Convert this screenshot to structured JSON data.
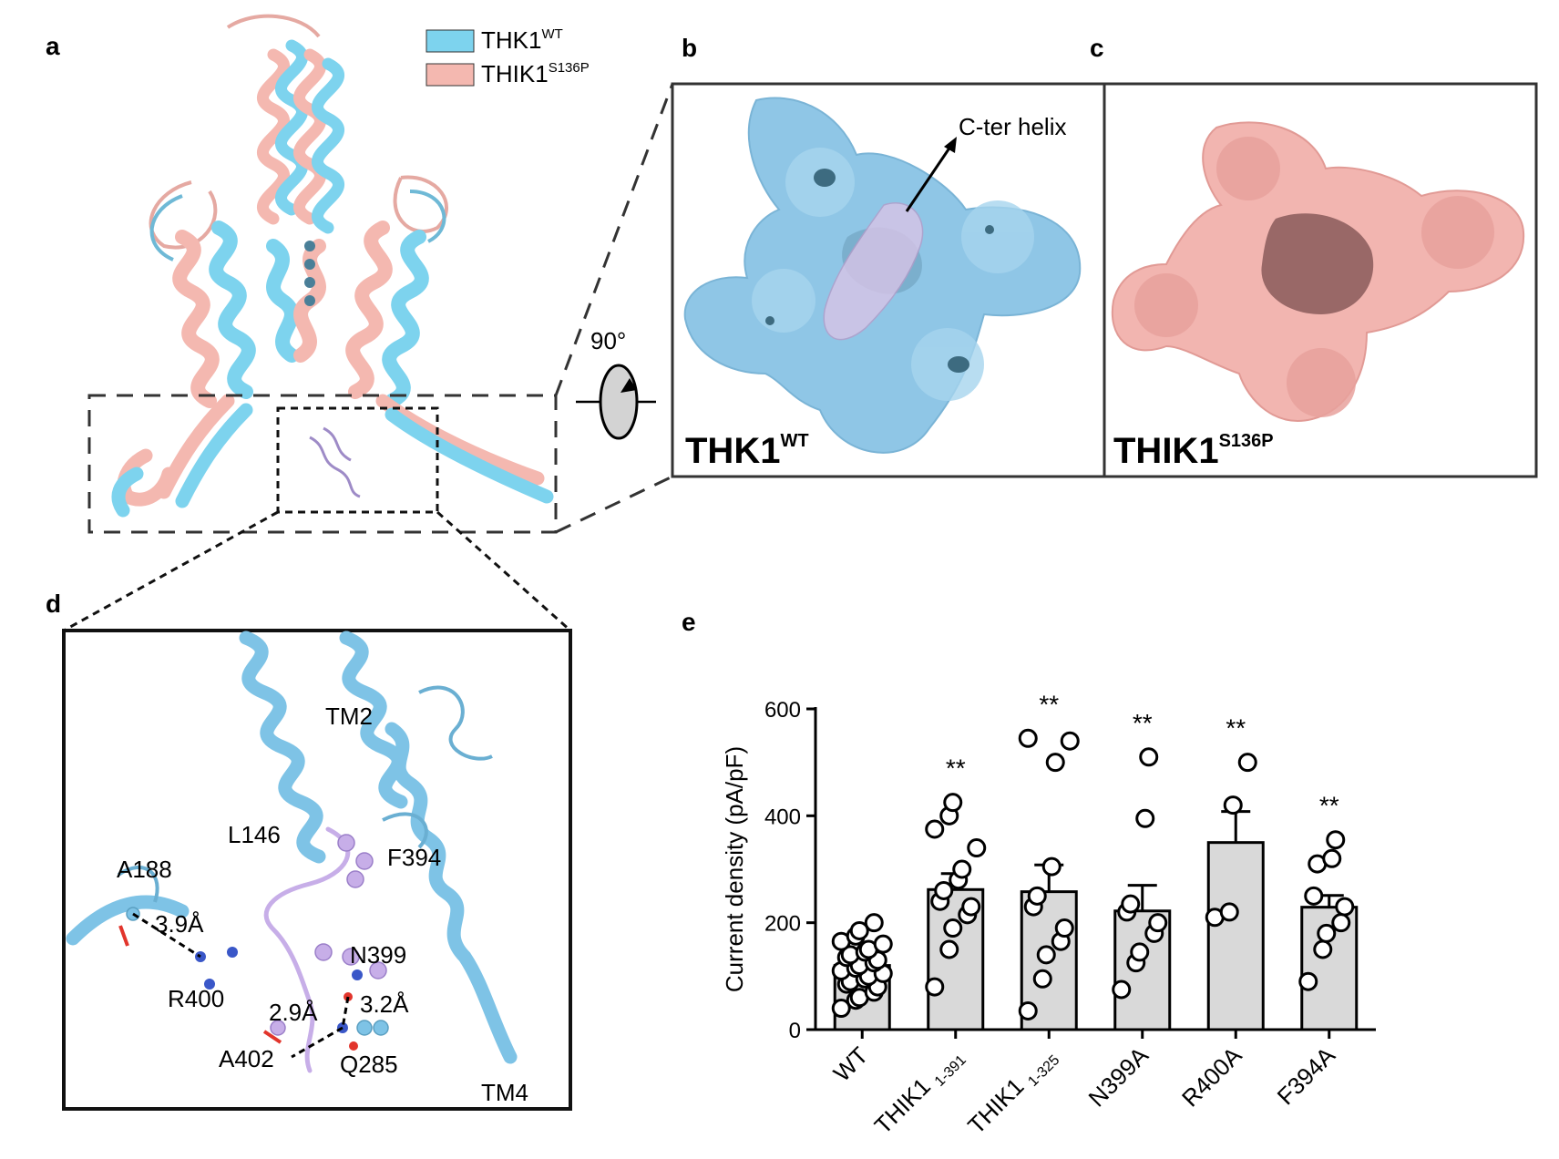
{
  "panels": {
    "a": "a",
    "b": "b",
    "c": "c",
    "d": "d",
    "e": "e"
  },
  "legend": [
    {
      "base": "THK1",
      "sup": "WT",
      "color": "#7dd3ee"
    },
    {
      "base": "THIK1",
      "sup": "S136P",
      "color": "#f4b8b0"
    }
  ],
  "rotation_label": "90°",
  "panel_b": {
    "base": "THK1",
    "sup": "WT",
    "annotation": "C-ter helix",
    "surface_color": "#8fc6e6"
  },
  "panel_c": {
    "base": "THIK1",
    "sup": "S136P",
    "surface_color": "#e8a4a0"
  },
  "panel_d": {
    "labels": {
      "tm2": "TM2",
      "l146": "L146",
      "f394": "F394",
      "a188": "A188",
      "dist1": "3.9Å",
      "n399": "N399",
      "r400": "R400",
      "dist2": "2.9Å",
      "dist3": "3.2Å",
      "a402": "A402",
      "q285": "Q285",
      "tm4": "TM4"
    }
  },
  "colors": {
    "helix_blue": "#7ec3e6",
    "ligand_purple": "#c7aee8",
    "bar_fill": "#d9d9d9"
  },
  "chart_data": {
    "type": "bar",
    "ylabel": "Current density (pA/pF)",
    "ylim": [
      0,
      600
    ],
    "yticks": [
      0,
      200,
      400,
      600
    ],
    "categories": [
      "WT",
      "THIK1 1-391",
      "THIK1 1-325",
      "N399A",
      "R400A",
      "F394A"
    ],
    "category_labels": [
      {
        "base": "WT",
        "sub": ""
      },
      {
        "base": "THIK1 ",
        "sub": "1-391"
      },
      {
        "base": "THIK1 ",
        "sub": "1-325"
      },
      {
        "base": "N399A",
        "sub": ""
      },
      {
        "base": "R400A",
        "sub": ""
      },
      {
        "base": "F394A",
        "sub": ""
      }
    ],
    "values": [
      120,
      262,
      258,
      222,
      350,
      229
    ],
    "sem": [
      10,
      30,
      50,
      48,
      58,
      22
    ],
    "significance": [
      "",
      "**",
      "**",
      "**",
      "**",
      "**"
    ],
    "points": [
      [
        40,
        55,
        60,
        70,
        80,
        85,
        90,
        95,
        100,
        105,
        110,
        115,
        120,
        125,
        130,
        135,
        140,
        145,
        150,
        160,
        165,
        175,
        185,
        200
      ],
      [
        80,
        150,
        190,
        215,
        230,
        240,
        260,
        280,
        300,
        340,
        375,
        400,
        425
      ],
      [
        35,
        95,
        140,
        165,
        190,
        230,
        250,
        305,
        500,
        540,
        545
      ],
      [
        75,
        125,
        145,
        180,
        200,
        220,
        235,
        395,
        510
      ],
      [
        210,
        220,
        420,
        500
      ],
      [
        90,
        150,
        180,
        200,
        230,
        250,
        310,
        320,
        355
      ]
    ]
  }
}
